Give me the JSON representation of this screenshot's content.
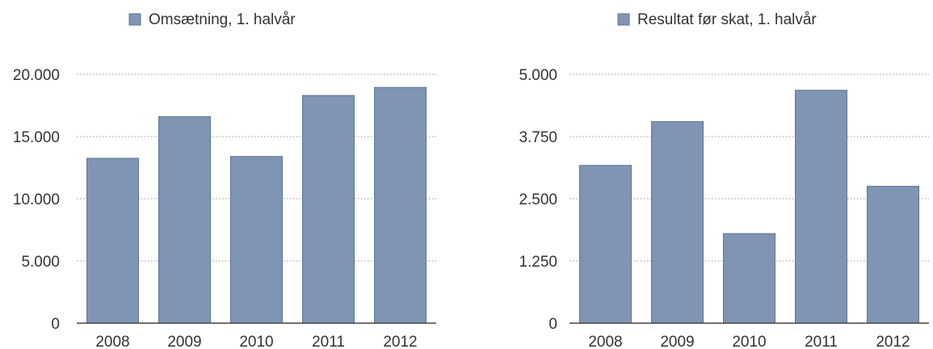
{
  "chart_data": [
    {
      "type": "bar",
      "legend": "Omsætning, 1. halvår",
      "legend_position": "top",
      "categories": [
        "2008",
        "2009",
        "2010",
        "2011",
        "2012"
      ],
      "series": [
        {
          "name": "Omsætning, 1. halvår",
          "values": [
            13250,
            16600,
            13400,
            18300,
            18950
          ]
        }
      ],
      "ylim": [
        0,
        20000
      ],
      "yticks": [
        0,
        5000,
        10000,
        15000,
        20000
      ],
      "ytick_labels": [
        "0",
        "5.000",
        "10.000",
        "15.000",
        "20.000"
      ],
      "grid": true,
      "color": "#7f95b3",
      "edge_color": "#5d7596"
    },
    {
      "type": "bar",
      "legend": "Resultat før skat, 1. halvår",
      "legend_position": "top",
      "categories": [
        "2008",
        "2009",
        "2010",
        "2011",
        "2012"
      ],
      "series": [
        {
          "name": "Resultat før skat, 1. halvår",
          "values": [
            3170,
            4050,
            1800,
            4680,
            2750
          ]
        }
      ],
      "ylim": [
        0,
        5000
      ],
      "yticks": [
        0,
        1250,
        2500,
        3750,
        5000
      ],
      "ytick_labels": [
        "0",
        "1.250",
        "2.500",
        "3.750",
        "5.000"
      ],
      "grid": true,
      "color": "#7f95b3",
      "edge_color": "#5d7596"
    }
  ]
}
